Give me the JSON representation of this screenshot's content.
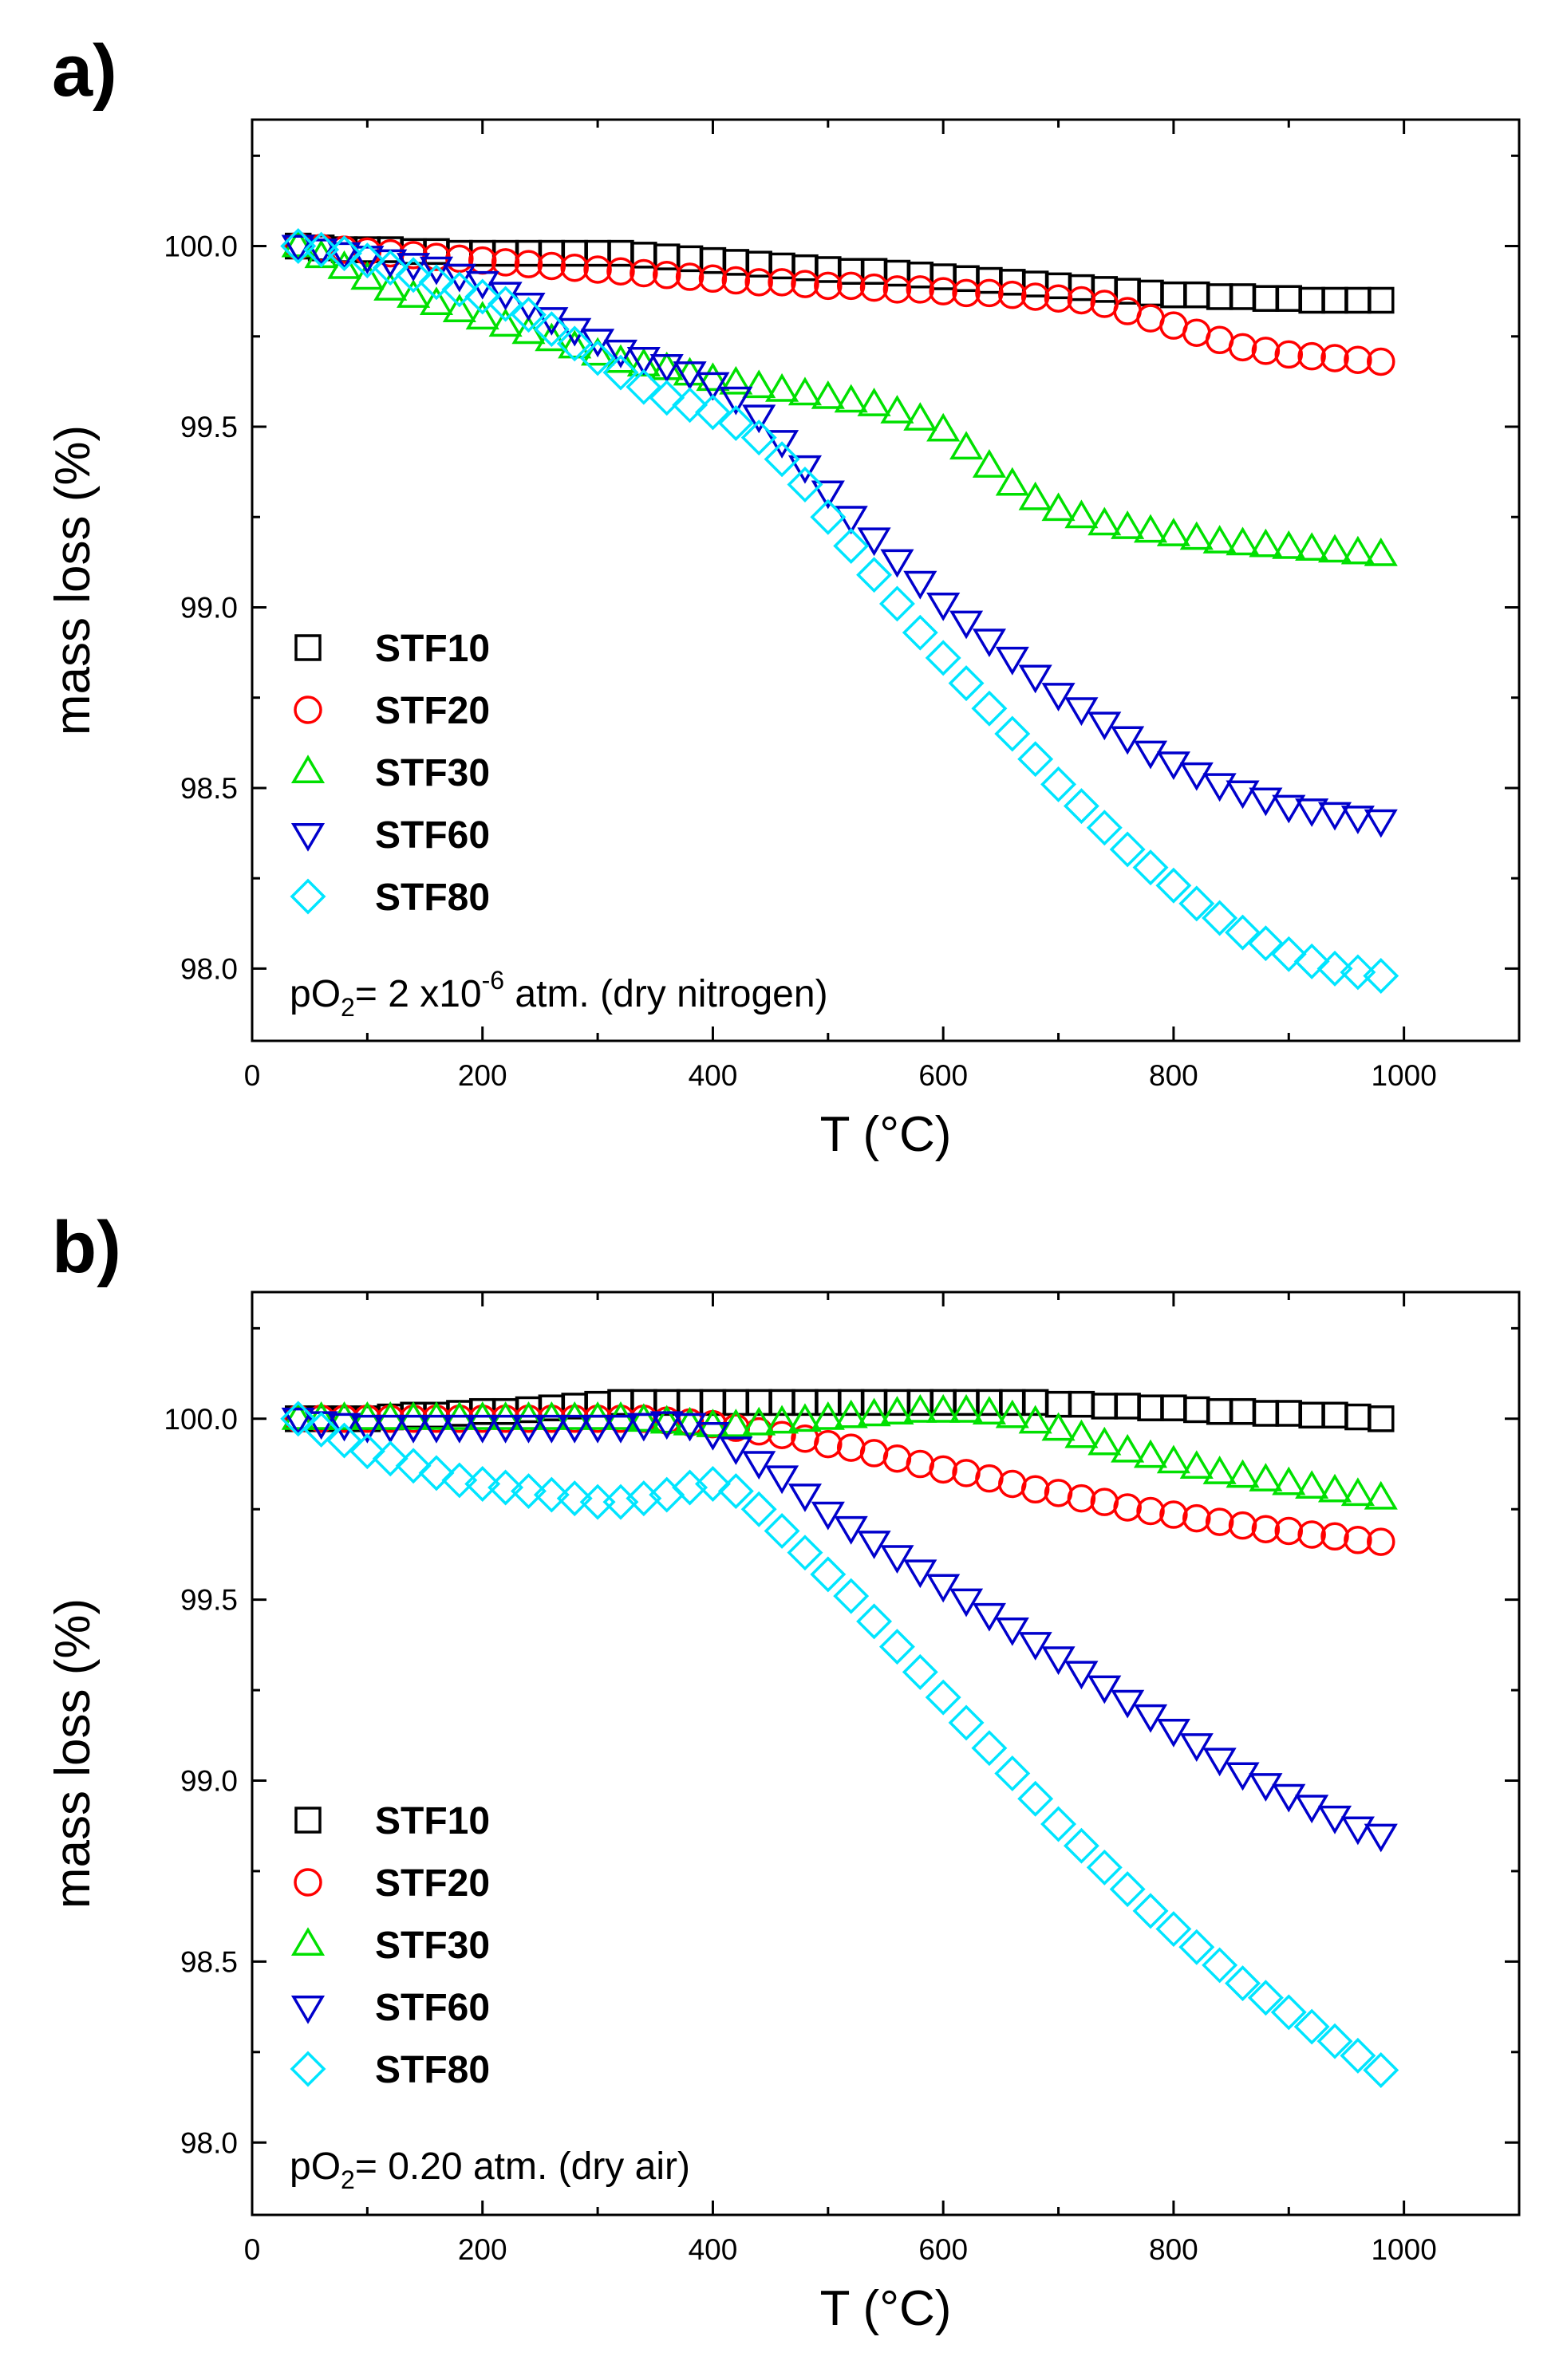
{
  "chart_data": [
    {
      "type": "scatter",
      "panel_label": "a)",
      "xlabel": "T (°C)",
      "ylabel": "mass loss (%)",
      "xlim": [
        0,
        1100
      ],
      "ylim": [
        97.8,
        100.35
      ],
      "xticks": [
        "0",
        "200",
        "400",
        "600",
        "800",
        "1000"
      ],
      "yticks": [
        "98.0",
        "98.5",
        "99.0",
        "99.5",
        "100.0"
      ],
      "annotation": {
        "prefix": "pO",
        "sub": "2",
        "mid": "= 2 x10",
        "sup": "-6",
        "suffix": " atm. (dry nitrogen)"
      },
      "legend_position": "lower-left",
      "x": [
        40,
        60,
        80,
        100,
        120,
        140,
        160,
        180,
        200,
        220,
        240,
        260,
        280,
        300,
        320,
        340,
        360,
        380,
        400,
        420,
        440,
        460,
        480,
        500,
        520,
        540,
        560,
        580,
        600,
        620,
        640,
        660,
        680,
        700,
        720,
        740,
        760,
        780,
        800,
        820,
        840,
        860,
        880,
        900,
        920,
        940,
        960,
        980
      ],
      "series": [
        {
          "name": "STF10",
          "marker": "square",
          "color": "#000000",
          "values": [
            100.0,
            99.995,
            99.99,
            99.99,
            99.99,
            99.985,
            99.985,
            99.98,
            99.98,
            99.98,
            99.98,
            99.98,
            99.98,
            99.98,
            99.98,
            99.975,
            99.97,
            99.965,
            99.96,
            99.955,
            99.95,
            99.945,
            99.94,
            99.935,
            99.93,
            99.93,
            99.925,
            99.92,
            99.915,
            99.91,
            99.905,
            99.9,
            99.895,
            99.89,
            99.885,
            99.88,
            99.875,
            99.87,
            99.865,
            99.865,
            99.86,
            99.86,
            99.855,
            99.855,
            99.85,
            99.85,
            99.85,
            99.85
          ]
        },
        {
          "name": "STF20",
          "marker": "circle",
          "color": "#ff0000",
          "values": [
            100.0,
            99.995,
            99.99,
            99.985,
            99.98,
            99.975,
            99.97,
            99.965,
            99.96,
            99.955,
            99.95,
            99.945,
            99.94,
            99.935,
            99.93,
            99.925,
            99.92,
            99.915,
            99.91,
            99.905,
            99.9,
            99.9,
            99.895,
            99.89,
            99.89,
            99.885,
            99.88,
            99.88,
            99.875,
            99.87,
            99.87,
            99.865,
            99.86,
            99.855,
            99.85,
            99.84,
            99.82,
            99.8,
            99.78,
            99.76,
            99.74,
            99.72,
            99.71,
            99.7,
            99.695,
            99.69,
            99.685,
            99.68
          ]
        },
        {
          "name": "STF30",
          "marker": "triangle-up",
          "color": "#00e000",
          "values": [
            100.0,
            99.97,
            99.94,
            99.91,
            99.88,
            99.86,
            99.84,
            99.82,
            99.8,
            99.78,
            99.76,
            99.74,
            99.72,
            99.7,
            99.68,
            99.67,
            99.66,
            99.645,
            99.63,
            99.62,
            99.61,
            99.6,
            99.59,
            99.58,
            99.57,
            99.56,
            99.54,
            99.52,
            99.49,
            99.44,
            99.39,
            99.34,
            99.3,
            99.27,
            99.25,
            99.23,
            99.22,
            99.21,
            99.2,
            99.19,
            99.18,
            99.175,
            99.17,
            99.165,
            99.16,
            99.155,
            99.15,
            99.145
          ]
        },
        {
          "name": "STF60",
          "marker": "triangle-down",
          "color": "#0000cc",
          "values": [
            100.0,
            99.99,
            99.98,
            99.97,
            99.96,
            99.95,
            99.94,
            99.92,
            99.9,
            99.87,
            99.84,
            99.8,
            99.77,
            99.74,
            99.71,
            99.69,
            99.67,
            99.65,
            99.62,
            99.58,
            99.53,
            99.46,
            99.39,
            99.32,
            99.25,
            99.19,
            99.13,
            99.07,
            99.01,
            98.96,
            98.91,
            98.86,
            98.81,
            98.76,
            98.72,
            98.68,
            98.64,
            98.6,
            98.57,
            98.54,
            98.51,
            98.49,
            98.47,
            98.45,
            98.44,
            98.43,
            98.42,
            98.41
          ]
        },
        {
          "name": "STF80",
          "marker": "diamond",
          "color": "#00e5ff",
          "values": [
            100.0,
            99.99,
            99.98,
            99.96,
            99.94,
            99.92,
            99.9,
            99.88,
            99.86,
            99.84,
            99.81,
            99.77,
            99.73,
            99.69,
            99.65,
            99.61,
            99.58,
            99.56,
            99.54,
            99.51,
            99.47,
            99.41,
            99.34,
            99.25,
            99.17,
            99.09,
            99.01,
            98.93,
            98.86,
            98.79,
            98.72,
            98.65,
            98.58,
            98.51,
            98.45,
            98.39,
            98.33,
            98.28,
            98.23,
            98.18,
            98.14,
            98.1,
            98.07,
            98.04,
            98.02,
            98.0,
            97.99,
            97.98
          ]
        }
      ]
    },
    {
      "type": "scatter",
      "panel_label": "b)",
      "xlabel": "T (°C)",
      "ylabel": "mass loss (%)",
      "xlim": [
        0,
        1100
      ],
      "ylim": [
        97.8,
        100.35
      ],
      "xticks": [
        "0",
        "200",
        "400",
        "600",
        "800",
        "1000"
      ],
      "yticks": [
        "98.0",
        "98.5",
        "99.0",
        "99.5",
        "100.0"
      ],
      "annotation": {
        "prefix": "pO",
        "sub": "2",
        "mid": "= 0.20 atm. (dry air)",
        "sup": "",
        "suffix": ""
      },
      "legend_position": "lower-left",
      "x": [
        40,
        60,
        80,
        100,
        120,
        140,
        160,
        180,
        200,
        220,
        240,
        260,
        280,
        300,
        320,
        340,
        360,
        380,
        400,
        420,
        440,
        460,
        480,
        500,
        520,
        540,
        560,
        580,
        600,
        620,
        640,
        660,
        680,
        700,
        720,
        740,
        760,
        780,
        800,
        820,
        840,
        860,
        880,
        900,
        920,
        940,
        960,
        980
      ],
      "series": [
        {
          "name": "STF10",
          "marker": "square",
          "color": "#000000",
          "values": [
            100.0,
            100.0,
            100.0,
            100.0,
            100.005,
            100.01,
            100.01,
            100.015,
            100.02,
            100.02,
            100.025,
            100.03,
            100.035,
            100.04,
            100.045,
            100.045,
            100.045,
            100.045,
            100.045,
            100.045,
            100.045,
            100.045,
            100.045,
            100.045,
            100.045,
            100.045,
            100.045,
            100.045,
            100.045,
            100.045,
            100.045,
            100.045,
            100.045,
            100.04,
            100.04,
            100.035,
            100.035,
            100.03,
            100.03,
            100.025,
            100.02,
            100.02,
            100.015,
            100.015,
            100.01,
            100.01,
            100.005,
            100.0
          ]
        },
        {
          "name": "STF20",
          "marker": "circle",
          "color": "#ff0000",
          "values": [
            100.0,
            100.0,
            100.0,
            100.0,
            100.0,
            100.0,
            100.0,
            100.0,
            100.0,
            100.0,
            100.0,
            100.0,
            100.0,
            100.0,
            100.0,
            100.0,
            99.995,
            99.99,
            99.985,
            99.975,
            99.965,
            99.955,
            99.945,
            99.93,
            99.92,
            99.905,
            99.89,
            99.875,
            99.86,
            99.85,
            99.835,
            99.82,
            99.805,
            99.795,
            99.78,
            99.77,
            99.755,
            99.745,
            99.735,
            99.725,
            99.715,
            99.705,
            99.695,
            99.69,
            99.68,
            99.675,
            99.665,
            99.66
          ]
        },
        {
          "name": "STF30",
          "marker": "triangle-up",
          "color": "#00e000",
          "values": [
            100.0,
            100.0,
            100.0,
            100.0,
            100.0,
            100.0,
            100.0,
            100.0,
            100.0,
            100.0,
            100.0,
            100.0,
            100.0,
            100.0,
            100.0,
            99.995,
            99.99,
            99.985,
            99.98,
            99.98,
            99.985,
            99.99,
            99.995,
            100.0,
            100.005,
            100.01,
            100.015,
            100.02,
            100.02,
            100.02,
            100.015,
            100.005,
            99.99,
            99.97,
            99.95,
            99.93,
            99.91,
            99.895,
            99.88,
            99.865,
            99.85,
            99.84,
            99.83,
            99.82,
            99.81,
            99.8,
            99.79,
            99.78
          ]
        },
        {
          "name": "STF60",
          "marker": "triangle-down",
          "color": "#0000cc",
          "values": [
            100.0,
            99.99,
            99.985,
            99.98,
            99.98,
            99.98,
            99.98,
            99.98,
            99.98,
            99.98,
            99.98,
            99.98,
            99.98,
            99.98,
            99.98,
            99.985,
            99.99,
            99.985,
            99.96,
            99.92,
            99.88,
            99.84,
            99.79,
            99.74,
            99.7,
            99.66,
            99.62,
            99.58,
            99.54,
            99.5,
            99.46,
            99.42,
            99.38,
            99.34,
            99.3,
            99.26,
            99.22,
            99.18,
            99.14,
            99.1,
            99.06,
            99.02,
            98.99,
            98.96,
            98.93,
            98.9,
            98.87,
            98.85
          ]
        },
        {
          "name": "STF80",
          "marker": "diamond",
          "color": "#00e5ff",
          "values": [
            100.0,
            99.97,
            99.94,
            99.91,
            99.89,
            99.87,
            99.85,
            99.83,
            99.82,
            99.81,
            99.8,
            99.79,
            99.78,
            99.77,
            99.77,
            99.78,
            99.79,
            99.81,
            99.82,
            99.8,
            99.75,
            99.69,
            99.63,
            99.57,
            99.51,
            99.44,
            99.37,
            99.3,
            99.23,
            99.16,
            99.09,
            99.02,
            98.95,
            98.88,
            98.82,
            98.76,
            98.7,
            98.64,
            98.59,
            98.54,
            98.49,
            98.44,
            98.4,
            98.36,
            98.32,
            98.28,
            98.24,
            98.2
          ]
        }
      ]
    }
  ]
}
